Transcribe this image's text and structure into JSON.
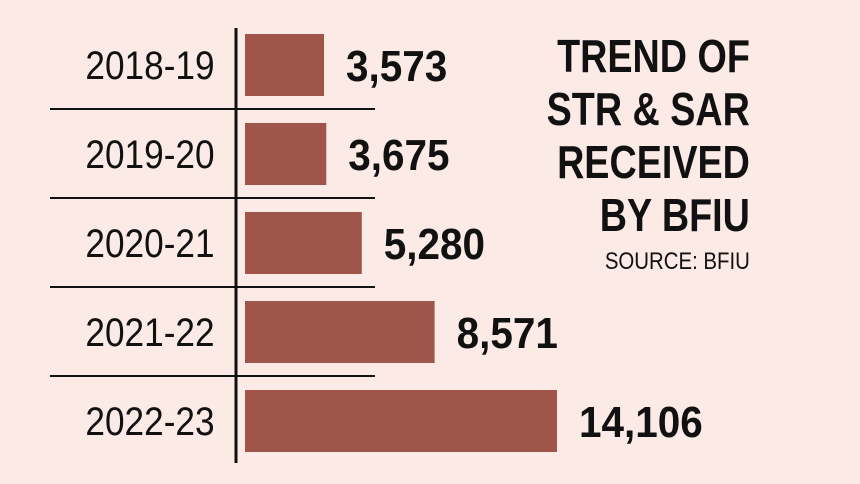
{
  "chart_data": {
    "type": "bar",
    "orientation": "horizontal",
    "title_lines": [
      "TREND OF",
      "STR & SAR",
      "RECEIVED",
      "BY BFIU"
    ],
    "source": "SOURCE: BFIU",
    "categories": [
      "2018-19",
      "2019-20",
      "2020-21",
      "2021-22",
      "2022-23"
    ],
    "values": [
      3573,
      3675,
      5280,
      8571,
      14106
    ],
    "value_labels": [
      "3,573",
      "3,675",
      "5,280",
      "8,571",
      "14,106"
    ],
    "xlabel": "",
    "ylabel": "",
    "bar_color": "#a0554a",
    "grid": false
  }
}
